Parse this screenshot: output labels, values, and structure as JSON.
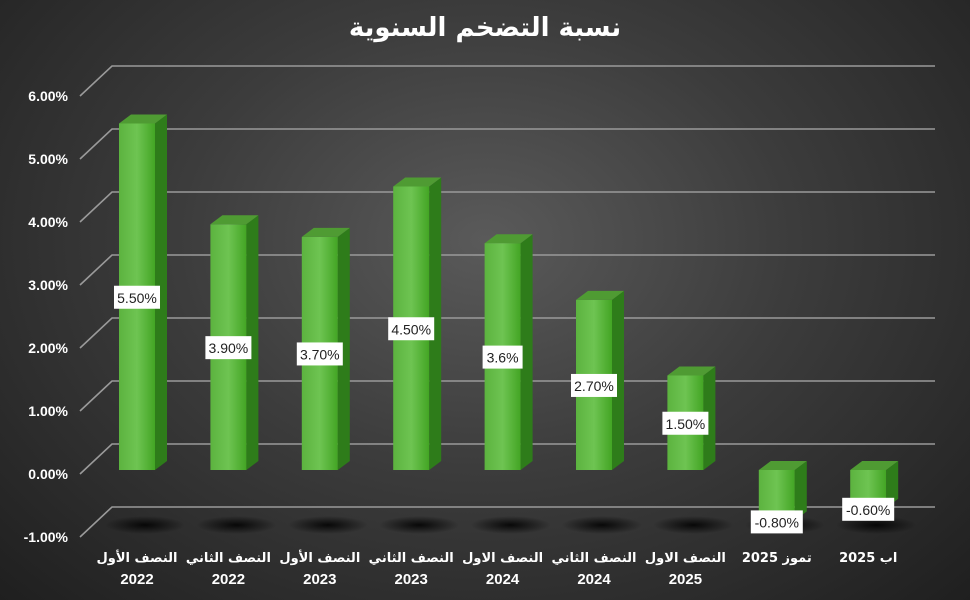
{
  "chart_data": {
    "type": "bar",
    "title": "نسبة التضخم السنوية",
    "categories": [
      [
        "النصف الأول",
        "2022"
      ],
      [
        "النصف الثاني",
        "2022"
      ],
      [
        "النصف الأول",
        "2023"
      ],
      [
        "النصف الثاني",
        "2023"
      ],
      [
        "النصف الاول",
        "2024"
      ],
      [
        "النصف الثاني",
        "2024"
      ],
      [
        "النصف الاول",
        "2025"
      ],
      [
        "تموز 2025",
        ""
      ],
      [
        "اب 2025",
        ""
      ]
    ],
    "values": [
      5.5,
      3.9,
      3.7,
      4.5,
      3.6,
      2.7,
      1.5,
      -0.8,
      -0.6
    ],
    "data_labels": [
      "5.50%",
      "3.90%",
      "3.70%",
      "4.50%",
      "3.6%",
      "2.70%",
      "1.50%",
      "-0.80%",
      "-0.60%"
    ],
    "y_ticks": [
      -1,
      0,
      1,
      2,
      3,
      4,
      5,
      6
    ],
    "y_tick_labels": [
      "-1.00%",
      "0.00%",
      "1.00%",
      "2.00%",
      "3.00%",
      "4.00%",
      "5.00%",
      "6.00%"
    ],
    "ylim": [
      -1,
      6
    ],
    "grid": true,
    "legend": "none",
    "style": "3d-column",
    "colors": {
      "bar_front_top": "#6cc04f",
      "bar_front_bottom": "#3fa71f",
      "bar_side": "#2e7c1a",
      "bar_top": "#4f9b33",
      "grid": "#9a9a9a",
      "label_bg": "#ffffff"
    }
  }
}
